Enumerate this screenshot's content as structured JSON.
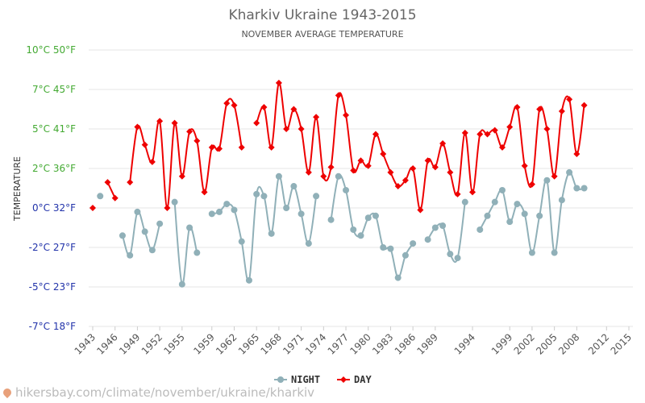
{
  "chart_data": {
    "type": "line",
    "title": "Kharkiv Ukraine 1943-2015",
    "subtitle": "NOVEMBER AVERAGE TEMPERATURE",
    "ylabel": "TEMPERATURE",
    "xlabel": "",
    "ylim": [
      -7,
      10
    ],
    "xlim": [
      1943,
      2015
    ],
    "y_ticks": [
      {
        "value": 10,
        "label": "10°C 50°F",
        "color": "#44aa33"
      },
      {
        "value": 7,
        "label": "7°C 45°F",
        "color": "#44aa33"
      },
      {
        "value": 5,
        "label": "5°C 41°F",
        "color": "#44aa33"
      },
      {
        "value": 2,
        "label": "2°C 36°F",
        "color": "#44aa33"
      },
      {
        "value": 0,
        "label": "0°C 32°F",
        "color": "#2233aa"
      },
      {
        "value": -2,
        "label": "-2°C 27°F",
        "color": "#2233aa"
      },
      {
        "value": -5,
        "label": "-5°C 23°F",
        "color": "#2233aa"
      },
      {
        "value": -7,
        "label": "-7°C 18°F",
        "color": "#2233aa"
      }
    ],
    "x_ticks": [
      "1943",
      "1946",
      "1949",
      "1952",
      "1955",
      "1959",
      "1962",
      "1965",
      "1968",
      "1971",
      "1974",
      "1977",
      "1980",
      "1983",
      "1986",
      "1989",
      "1994",
      "1999",
      "2002",
      "2005",
      "2008",
      "2012",
      "2015"
    ],
    "grid": true,
    "legend_position": "bottom",
    "series": [
      {
        "name": "NIGHT",
        "color": "#90b0b8",
        "points": [
          [
            1944,
            0.6
          ],
          [
            1947,
            -1.4
          ],
          [
            1948,
            -2.6
          ],
          [
            1949,
            -0.2
          ],
          [
            1950,
            -1.2
          ],
          [
            1951,
            -2.2
          ],
          [
            1952,
            -0.8
          ],
          [
            1954,
            0.3
          ],
          [
            1955,
            -4.8
          ],
          [
            1956,
            -1.0
          ],
          [
            1957,
            -2.4
          ],
          [
            1959,
            -0.3
          ],
          [
            1960,
            -0.2
          ],
          [
            1961,
            0.2
          ],
          [
            1962,
            -0.1
          ],
          [
            1963,
            -1.7
          ],
          [
            1964,
            -4.5
          ],
          [
            1965,
            0.7
          ],
          [
            1966,
            0.6
          ],
          [
            1967,
            -1.3
          ],
          [
            1968,
            1.6
          ],
          [
            1969,
            0.0
          ],
          [
            1970,
            1.1
          ],
          [
            1971,
            -0.3
          ],
          [
            1972,
            -1.8
          ],
          [
            1973,
            0.6
          ],
          [
            1975,
            -0.6
          ],
          [
            1976,
            1.6
          ],
          [
            1977,
            0.9
          ],
          [
            1978,
            -1.1
          ],
          [
            1979,
            -1.4
          ],
          [
            1980,
            -0.5
          ],
          [
            1981,
            -0.4
          ],
          [
            1982,
            -2.0
          ],
          [
            1983,
            -2.1
          ],
          [
            1984,
            -4.3
          ],
          [
            1985,
            -2.6
          ],
          [
            1986,
            -1.8
          ],
          [
            1988,
            -1.6
          ],
          [
            1989,
            -1.0
          ],
          [
            1990,
            -0.9
          ],
          [
            1991,
            -2.5
          ],
          [
            1992,
            -2.8
          ],
          [
            1993,
            0.3
          ],
          [
            1995,
            -1.1
          ],
          [
            1996,
            -0.4
          ],
          [
            1997,
            0.3
          ],
          [
            1998,
            0.9
          ],
          [
            1999,
            -0.7
          ],
          [
            2000,
            0.2
          ],
          [
            2001,
            -0.3
          ],
          [
            2002,
            -2.4
          ],
          [
            2003,
            -0.4
          ],
          [
            2004,
            1.4
          ],
          [
            2005,
            -2.4
          ],
          [
            2006,
            0.4
          ],
          [
            2007,
            1.8
          ],
          [
            2008,
            1.0
          ],
          [
            2009,
            1.0
          ]
        ]
      },
      {
        "name": "DAY",
        "color": "#ee0000",
        "points": [
          [
            1943,
            0.0
          ],
          [
            1945,
            1.3
          ],
          [
            1946,
            0.5
          ],
          [
            1948,
            1.3
          ],
          [
            1949,
            5.1
          ],
          [
            1950,
            3.8
          ],
          [
            1951,
            2.5
          ],
          [
            1952,
            5.4
          ],
          [
            1953,
            0.0
          ],
          [
            1954,
            5.3
          ],
          [
            1955,
            1.6
          ],
          [
            1956,
            4.8
          ],
          [
            1957,
            4.1
          ],
          [
            1958,
            0.8
          ],
          [
            1959,
            3.6
          ],
          [
            1960,
            3.5
          ],
          [
            1961,
            6.3
          ],
          [
            1962,
            6.2
          ],
          [
            1963,
            3.6
          ],
          [
            1965,
            5.3
          ],
          [
            1966,
            6.1
          ],
          [
            1967,
            3.6
          ],
          [
            1968,
            7.5
          ],
          [
            1969,
            5.0
          ],
          [
            1970,
            6.0
          ],
          [
            1971,
            5.0
          ],
          [
            1972,
            1.8
          ],
          [
            1973,
            5.6
          ],
          [
            1974,
            1.6
          ],
          [
            1975,
            2.1
          ],
          [
            1976,
            6.7
          ],
          [
            1977,
            5.7
          ],
          [
            1978,
            1.9
          ],
          [
            1979,
            2.6
          ],
          [
            1980,
            2.2
          ],
          [
            1981,
            4.6
          ],
          [
            1982,
            3.1
          ],
          [
            1983,
            1.8
          ],
          [
            1984,
            1.1
          ],
          [
            1985,
            1.4
          ],
          [
            1986,
            2.0
          ],
          [
            1987,
            -0.1
          ],
          [
            1988,
            2.6
          ],
          [
            1989,
            2.1
          ],
          [
            1990,
            3.9
          ],
          [
            1991,
            1.8
          ],
          [
            1992,
            0.7
          ],
          [
            1993,
            4.7
          ],
          [
            1994,
            0.8
          ],
          [
            1995,
            4.6
          ],
          [
            1996,
            4.6
          ],
          [
            1997,
            4.9
          ],
          [
            1998,
            3.6
          ],
          [
            1999,
            5.1
          ],
          [
            2000,
            6.1
          ],
          [
            2001,
            2.2
          ],
          [
            2002,
            1.2
          ],
          [
            2003,
            6.0
          ],
          [
            2004,
            5.0
          ],
          [
            2005,
            1.6
          ],
          [
            2006,
            5.9
          ],
          [
            2007,
            6.5
          ],
          [
            2008,
            3.1
          ],
          [
            2009,
            6.2
          ]
        ]
      }
    ]
  },
  "footer": {
    "url_text": "hikersbay.com/climate/november/ukraine/kharkiv"
  }
}
